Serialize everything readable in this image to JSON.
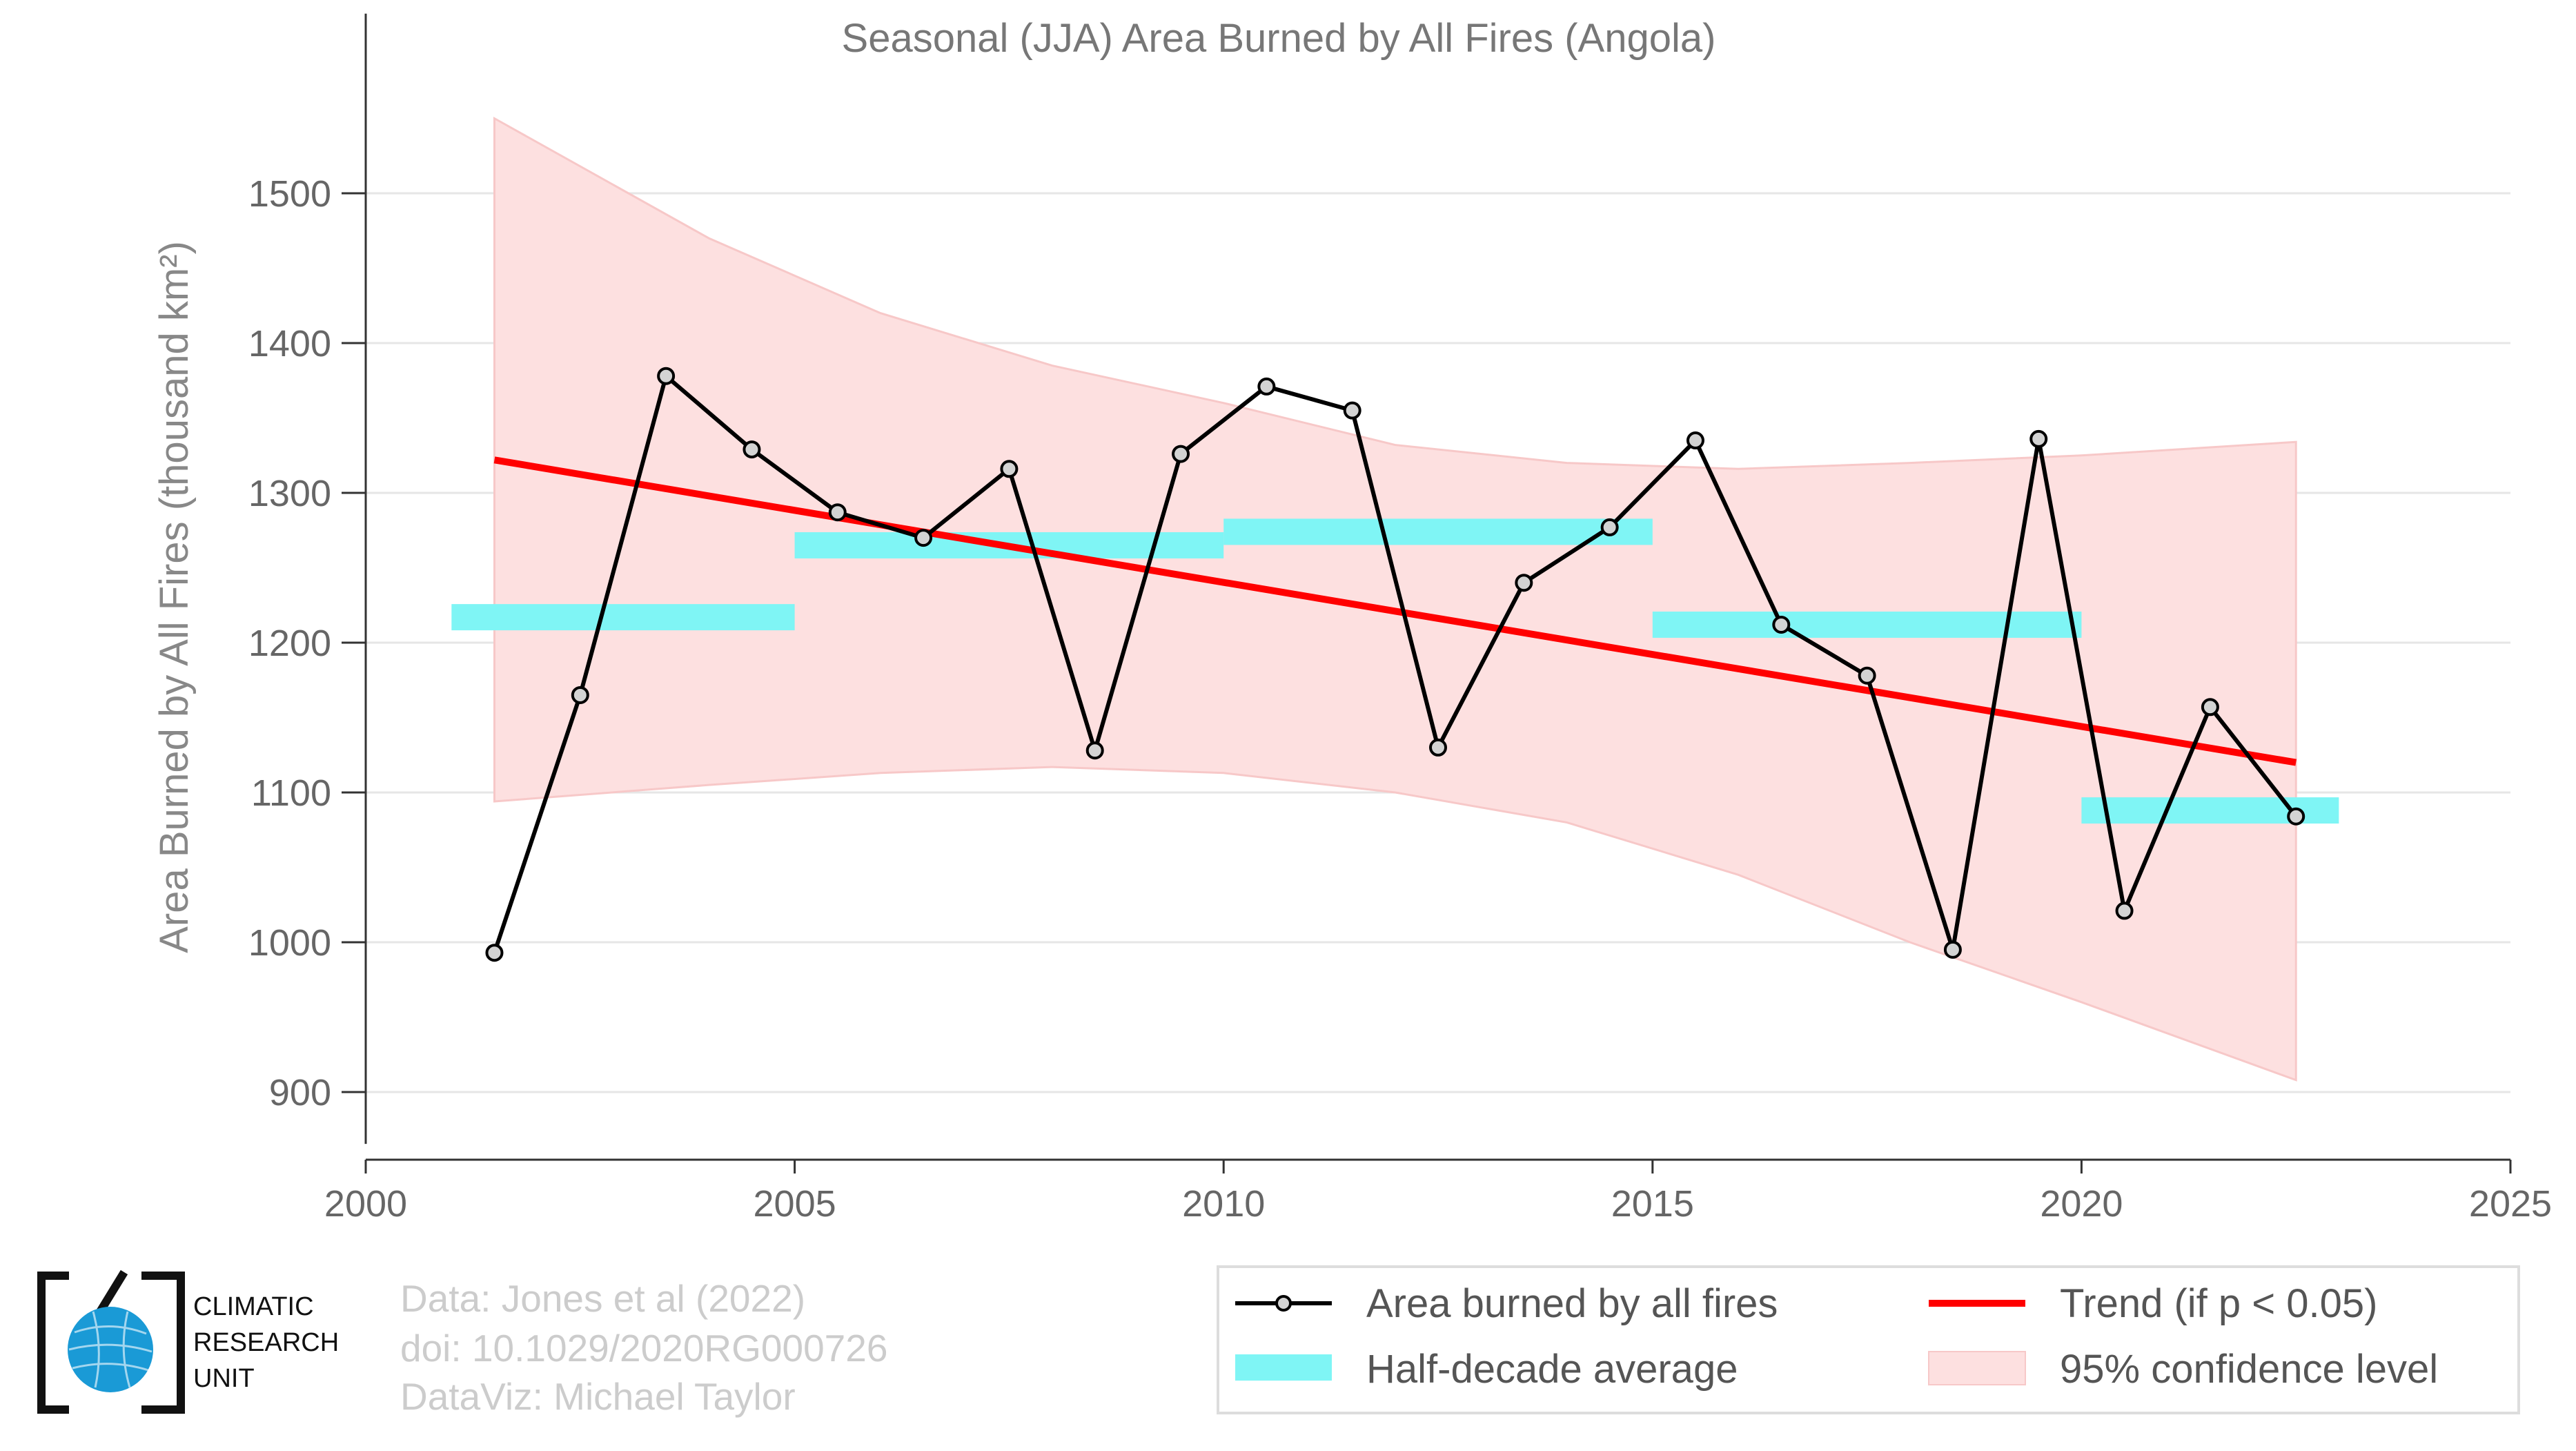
{
  "chart_data": {
    "type": "line",
    "title": "Seasonal (JJA) Area Burned by All Fires (Angola)",
    "ylabel": "Area Burned by All Fires (thousand km²)",
    "xlabel": "",
    "xlim": [
      2000,
      2025
    ],
    "ylim": [
      870,
      1560
    ],
    "x_ticks": [
      2000,
      2005,
      2010,
      2015,
      2020,
      2025
    ],
    "y_ticks": [
      900,
      1000,
      1100,
      1200,
      1300,
      1400,
      1500
    ],
    "grid": "horizontal",
    "legend_position": "bottom-right",
    "series": [
      {
        "name": "Area burned by all fires",
        "color": "#000000",
        "x": [
          2001.5,
          2002.5,
          2003.5,
          2004.5,
          2005.5,
          2006.5,
          2007.5,
          2008.5,
          2009.5,
          2010.5,
          2011.5,
          2012.5,
          2013.5,
          2014.5,
          2015.5,
          2016.5,
          2017.5,
          2018.5,
          2019.5,
          2020.5,
          2021.5,
          2022.5
        ],
        "y": [
          993,
          1165,
          1378,
          1329,
          1287,
          1270,
          1316,
          1128,
          1326,
          1371,
          1355,
          1130,
          1240,
          1277,
          1335,
          1212,
          1178,
          995,
          1336,
          1021,
          1157,
          1084
        ]
      },
      {
        "name": "Half-decade average",
        "color": "#7ff5f5",
        "segments": [
          {
            "x_start": 2001.0,
            "x_end": 2005.0,
            "y": 1217
          },
          {
            "x_start": 2005.0,
            "x_end": 2010.0,
            "y": 1265
          },
          {
            "x_start": 2010.0,
            "x_end": 2015.0,
            "y": 1274
          },
          {
            "x_start": 2015.0,
            "x_end": 2020.0,
            "y": 1212
          },
          {
            "x_start": 2020.0,
            "x_end": 2023.0,
            "y": 1088
          }
        ]
      },
      {
        "name": "Trend (if p < 0.05)",
        "color": "#ff0000",
        "x": [
          2001.5,
          2022.5
        ],
        "y": [
          1322,
          1120
        ]
      },
      {
        "name": "95% confidence level",
        "color": "#fde0e0",
        "x": [
          2001.5,
          2004,
          2006,
          2008,
          2010,
          2012,
          2014,
          2016,
          2018,
          2020,
          2022.5
        ],
        "upper": [
          1550,
          1470,
          1420,
          1385,
          1360,
          1332,
          1320,
          1316,
          1320,
          1325,
          1334
        ],
        "lower": [
          1094,
          1105,
          1113,
          1117,
          1113,
          1100,
          1080,
          1045,
          1000,
          960,
          908
        ]
      }
    ]
  },
  "credits": {
    "line1": "Data: Jones et al (2022)",
    "line2": "doi: 10.1029/2020RG000726",
    "line3": "DataViz: Michael Taylor"
  },
  "logo": {
    "line1": "CLIMATIC",
    "line2": "RESEARCH",
    "line3": "UNIT",
    "globe_color": "#1a9ad6"
  }
}
